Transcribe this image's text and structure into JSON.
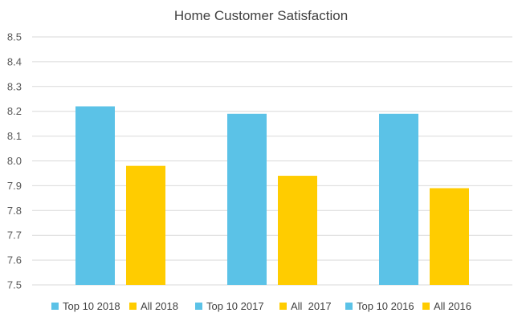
{
  "chart_data": {
    "type": "bar",
    "title": "Home Customer Satisfaction",
    "xlabel": "",
    "ylabel": "",
    "ylim": [
      7.5,
      8.5
    ],
    "y_ticks": [
      "7.5",
      "7.6",
      "7.7",
      "7.8",
      "7.9",
      "8.0",
      "8.1",
      "8.2",
      "8.3",
      "8.4",
      "8.5"
    ],
    "grid": true,
    "legend_position": "bottom",
    "bars": [
      {
        "name": "Top 10 2018",
        "value": 8.22,
        "color": "#5bc2e7"
      },
      {
        "name": "All 2018",
        "value": 7.98,
        "color": "#ffcc00"
      },
      {
        "name": "Top 10 2017",
        "value": 8.19,
        "color": "#5bc2e7"
      },
      {
        "name": "All  2017",
        "value": 7.94,
        "color": "#ffcc00"
      },
      {
        "name": "Top 10 2016",
        "value": 8.19,
        "color": "#5bc2e7"
      },
      {
        "name": "All 2016",
        "value": 7.89,
        "color": "#ffcc00"
      }
    ]
  }
}
